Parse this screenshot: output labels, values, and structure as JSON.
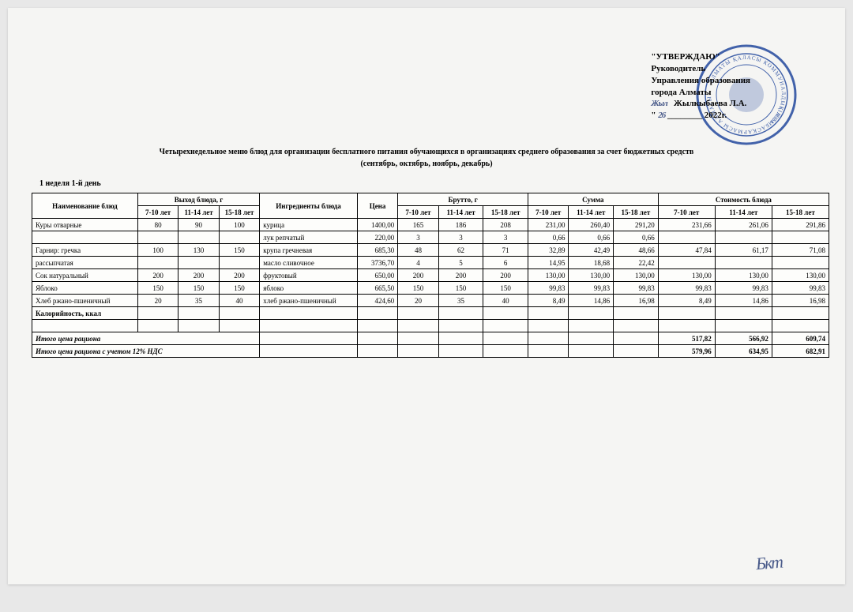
{
  "approval": {
    "line1": "\"УТВЕРЖДАЮ\"",
    "line2": "Руководитель",
    "line3": "Управления образования",
    "line4": "города Алматы",
    "sig_name": "Жылкыбаева Л.А.",
    "date_open": "\"",
    "date_day": "26",
    "date_rest": "________ 2022г.",
    "signature": "Жыл"
  },
  "title_line1": "Четырехнедельное меню блюд для организации бесплатного питания обучающихся в организациях среднего образования за счет бюджетных средств",
  "title_line2": "(сентябрь, октябрь, ноябрь, декабрь)",
  "week_day": "1 неделя 1-й день",
  "headers": {
    "name": "Наименование блюд",
    "yield": "Выход блюда, г",
    "ingredients": "Ингредиенты блюда",
    "price": "Цена",
    "brutto": "Брутто, г",
    "sum": "Сумма",
    "cost": "Стоимость блюда",
    "a1": "7-10 лет",
    "a2": "11-14 лет",
    "a3": "15-18 лет"
  },
  "rows": [
    {
      "name": "Куры отварные",
      "y1": "80",
      "y2": "90",
      "y3": "100",
      "ing": "курица",
      "price": "1400,00",
      "b1": "165",
      "b2": "186",
      "b3": "208",
      "s1": "231,00",
      "s2": "260,40",
      "s3": "291,20",
      "c1": "231,66",
      "c2": "261,06",
      "c3": "291,86"
    },
    {
      "name": "",
      "y1": "",
      "y2": "",
      "y3": "",
      "ing": "лук репчатый",
      "price": "220,00",
      "b1": "3",
      "b2": "3",
      "b3": "3",
      "s1": "0,66",
      "s2": "0,66",
      "s3": "0,66",
      "c1": "",
      "c2": "",
      "c3": ""
    },
    {
      "name": "Гарнир: гречка",
      "y1": "100",
      "y2": "130",
      "y3": "150",
      "ing": "крупа гречневая",
      "price": "685,30",
      "b1": "48",
      "b2": "62",
      "b3": "71",
      "s1": "32,89",
      "s2": "42,49",
      "s3": "48,66",
      "c1": "47,84",
      "c2": "61,17",
      "c3": "71,08"
    },
    {
      "name": "рассыпчатая",
      "y1": "",
      "y2": "",
      "y3": "",
      "ing": "масло сливочное",
      "price": "3736,70",
      "b1": "4",
      "b2": "5",
      "b3": "6",
      "s1": "14,95",
      "s2": "18,68",
      "s3": "22,42",
      "c1": "",
      "c2": "",
      "c3": ""
    },
    {
      "name": "Сок натуральный",
      "y1": "200",
      "y2": "200",
      "y3": "200",
      "ing": "фруктовый",
      "price": "650,00",
      "b1": "200",
      "b2": "200",
      "b3": "200",
      "s1": "130,00",
      "s2": "130,00",
      "s3": "130,00",
      "c1": "130,00",
      "c2": "130,00",
      "c3": "130,00"
    },
    {
      "name": "Яблоко",
      "y1": "150",
      "y2": "150",
      "y3": "150",
      "ing": "яблоко",
      "price": "665,50",
      "b1": "150",
      "b2": "150",
      "b3": "150",
      "s1": "99,83",
      "s2": "99,83",
      "s3": "99,83",
      "c1": "99,83",
      "c2": "99,83",
      "c3": "99,83"
    },
    {
      "name": "Хлеб ржано-пшеничный",
      "y1": "20",
      "y2": "35",
      "y3": "40",
      "ing": "хлеб ржано-пшеничный",
      "price": "424,60",
      "b1": "20",
      "b2": "35",
      "b3": "40",
      "s1": "8,49",
      "s2": "14,86",
      "s3": "16,98",
      "c1": "8,49",
      "c2": "14,86",
      "c3": "16,98"
    }
  ],
  "cal_label": "Калорийность, ккал",
  "total1_label": "Итого цена рациона",
  "total1": {
    "c1": "517,82",
    "c2": "566,92",
    "c3": "609,74"
  },
  "total2_label": "Итого цена рациона с учетом 12% НДС",
  "total2": {
    "c1": "579,96",
    "c2": "634,95",
    "c3": "682,91"
  },
  "colwidths": {
    "name": 130,
    "y": 50,
    "ing": 120,
    "price": 50,
    "b": 50,
    "s": 55,
    "c": 70
  },
  "colors": {
    "page": "#f5f5f3",
    "stamp": "#2a4ea0",
    "border": "#000000",
    "sig": "#4a5b8a"
  },
  "bottom_sig": "Бкт"
}
